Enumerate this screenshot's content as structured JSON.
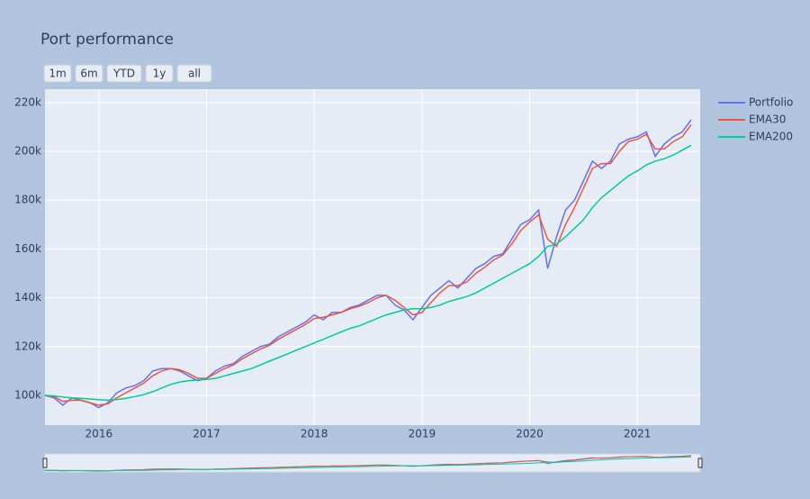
{
  "chart_data": {
    "type": "line",
    "title": "Port performance",
    "range_buttons": [
      "1m",
      "6m",
      "YTD",
      "1y",
      "all"
    ],
    "x": [
      "2015-07",
      "2015-08",
      "2015-09",
      "2015-10",
      "2015-11",
      "2015-12",
      "2016-01",
      "2016-02",
      "2016-03",
      "2016-04",
      "2016-05",
      "2016-06",
      "2016-07",
      "2016-08",
      "2016-09",
      "2016-10",
      "2016-11",
      "2016-12",
      "2017-01",
      "2017-02",
      "2017-03",
      "2017-04",
      "2017-05",
      "2017-06",
      "2017-07",
      "2017-08",
      "2017-09",
      "2017-10",
      "2017-11",
      "2017-12",
      "2018-01",
      "2018-02",
      "2018-03",
      "2018-04",
      "2018-05",
      "2018-06",
      "2018-07",
      "2018-08",
      "2018-09",
      "2018-10",
      "2018-11",
      "2018-12",
      "2019-01",
      "2019-02",
      "2019-03",
      "2019-04",
      "2019-05",
      "2019-06",
      "2019-07",
      "2019-08",
      "2019-09",
      "2019-10",
      "2019-11",
      "2019-12",
      "2020-01",
      "2020-02",
      "2020-03",
      "2020-04",
      "2020-05",
      "2020-06",
      "2020-07",
      "2020-08",
      "2020-09",
      "2020-10",
      "2020-11",
      "2020-12",
      "2021-01",
      "2021-02",
      "2021-03",
      "2021-04",
      "2021-05",
      "2021-06",
      "2021-07"
    ],
    "series": [
      {
        "name": "Portfolio",
        "color": "#636efa",
        "values": [
          100000,
          99000,
          96000,
          99000,
          98000,
          97000,
          95000,
          97000,
          101000,
          103000,
          104000,
          106000,
          110000,
          111000,
          111000,
          110000,
          108000,
          106000,
          107000,
          110000,
          112000,
          113000,
          116000,
          118000,
          120000,
          121000,
          124000,
          126000,
          128000,
          130000,
          133000,
          131000,
          134000,
          134000,
          136000,
          137000,
          139000,
          141000,
          141000,
          137000,
          135000,
          131000,
          136000,
          141000,
          144000,
          147000,
          144000,
          148000,
          152000,
          154000,
          157000,
          158000,
          164000,
          170000,
          172000,
          176000,
          152000,
          165000,
          176000,
          180000,
          188000,
          196000,
          193000,
          196000,
          203000,
          205000,
          206000,
          208000,
          198000,
          203000,
          206000,
          208000,
          213000
        ]
      },
      {
        "name": "EMA30",
        "color": "#ef553b",
        "values": [
          100000,
          99500,
          97500,
          98000,
          98000,
          97000,
          96000,
          96500,
          99000,
          101000,
          103000,
          105000,
          108000,
          110000,
          111000,
          110500,
          109000,
          107000,
          107000,
          109000,
          111000,
          112500,
          115000,
          117000,
          119000,
          120500,
          123000,
          125000,
          127000,
          129000,
          131500,
          132000,
          133000,
          134000,
          135500,
          136500,
          138000,
          140000,
          141000,
          139000,
          136000,
          133000,
          134000,
          138000,
          142000,
          145000,
          145000,
          146500,
          150000,
          152500,
          155500,
          157500,
          162000,
          167500,
          171000,
          174000,
          164000,
          161000,
          170000,
          177000,
          185000,
          193000,
          195000,
          195000,
          200000,
          204000,
          205000,
          207000,
          201000,
          201000,
          204000,
          206000,
          211000
        ]
      },
      {
        "name": "EMA200",
        "color": "#00cc96",
        "values": [
          100000,
          99800,
          99300,
          99000,
          98800,
          98500,
          98200,
          98000,
          98300,
          98800,
          99500,
          100300,
          101500,
          103000,
          104500,
          105500,
          106000,
          106300,
          106500,
          107000,
          108000,
          109000,
          110000,
          111000,
          112500,
          114000,
          115500,
          117000,
          118500,
          120000,
          121500,
          123000,
          124500,
          126000,
          127500,
          128500,
          130000,
          131500,
          133000,
          134000,
          135000,
          135500,
          135500,
          136000,
          137000,
          138500,
          139500,
          140500,
          142000,
          144000,
          146000,
          148000,
          150000,
          152000,
          154000,
          157000,
          161000,
          162000,
          165000,
          168500,
          172000,
          177000,
          181000,
          184000,
          187000,
          190000,
          192000,
          194500,
          196000,
          197000,
          198500,
          200500,
          202500
        ]
      }
    ],
    "xlim": [
      "2015-07",
      "2021-08"
    ],
    "xticks": [
      {
        "value": "2016-01",
        "label": "2016"
      },
      {
        "value": "2017-01",
        "label": "2017"
      },
      {
        "value": "2018-01",
        "label": "2018"
      },
      {
        "value": "2019-01",
        "label": "2019"
      },
      {
        "value": "2020-01",
        "label": "2020"
      },
      {
        "value": "2021-01",
        "label": "2021"
      }
    ],
    "ylim": [
      87800,
      225500
    ],
    "yticks": [
      {
        "value": 100000,
        "label": "100k"
      },
      {
        "value": 120000,
        "label": "120k"
      },
      {
        "value": 140000,
        "label": "140k"
      },
      {
        "value": 160000,
        "label": "160k"
      },
      {
        "value": 180000,
        "label": "180k"
      },
      {
        "value": 200000,
        "label": "200k"
      },
      {
        "value": 220000,
        "label": "220k"
      }
    ],
    "grid": true,
    "legend": "right",
    "rangeslider": true
  }
}
